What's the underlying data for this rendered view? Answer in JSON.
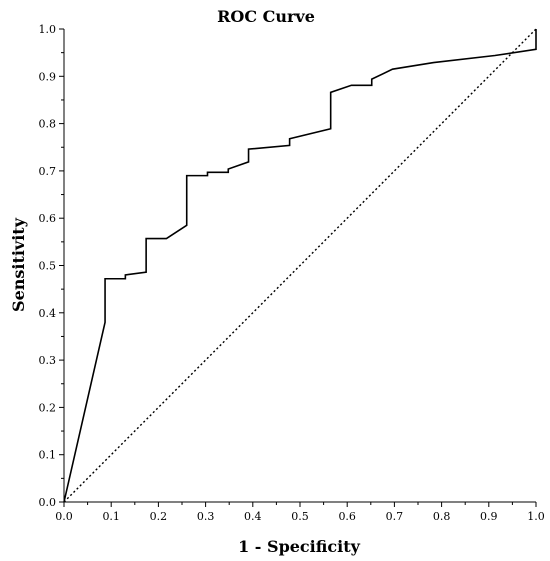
{
  "chart_data": {
    "type": "line",
    "title": "ROC Curve",
    "xlabel": "1 - Specificity",
    "ylabel": "Sensitivity",
    "xlim": [
      0.0,
      1.0
    ],
    "ylim": [
      0.0,
      1.0
    ],
    "xticks": [
      "0.0",
      "0.1",
      "0.2",
      "0.3",
      "0.4",
      "0.5",
      "0.6",
      "0.7",
      "0.8",
      "0.9",
      "1.0"
    ],
    "yticks": [
      "0.0",
      "0.1",
      "0.2",
      "0.3",
      "0.4",
      "0.5",
      "0.6",
      "0.7",
      "0.8",
      "0.9",
      "1.0"
    ],
    "grid": false,
    "legend": "none",
    "series": [
      {
        "style": "solid",
        "color": "#000000",
        "x": [
          0.0,
          0.087,
          0.087,
          0.13,
          0.13,
          0.174,
          0.174,
          0.217,
          0.26,
          0.26,
          0.304,
          0.304,
          0.348,
          0.348,
          0.391,
          0.391,
          0.478,
          0.478,
          0.565,
          0.565,
          0.609,
          0.652,
          0.652,
          0.696,
          0.783,
          0.913,
          1.0,
          1.0
        ],
        "y": [
          0.0,
          0.38,
          0.472,
          0.472,
          0.48,
          0.486,
          0.557,
          0.557,
          0.585,
          0.69,
          0.69,
          0.697,
          0.697,
          0.704,
          0.719,
          0.746,
          0.754,
          0.768,
          0.789,
          0.866,
          0.881,
          0.881,
          0.894,
          0.915,
          0.929,
          0.944,
          0.957,
          1.0
        ]
      },
      {
        "style": "dotted",
        "color": "#000000",
        "x": [
          0.0,
          1.0
        ],
        "y": [
          0.0,
          1.0
        ]
      }
    ]
  }
}
